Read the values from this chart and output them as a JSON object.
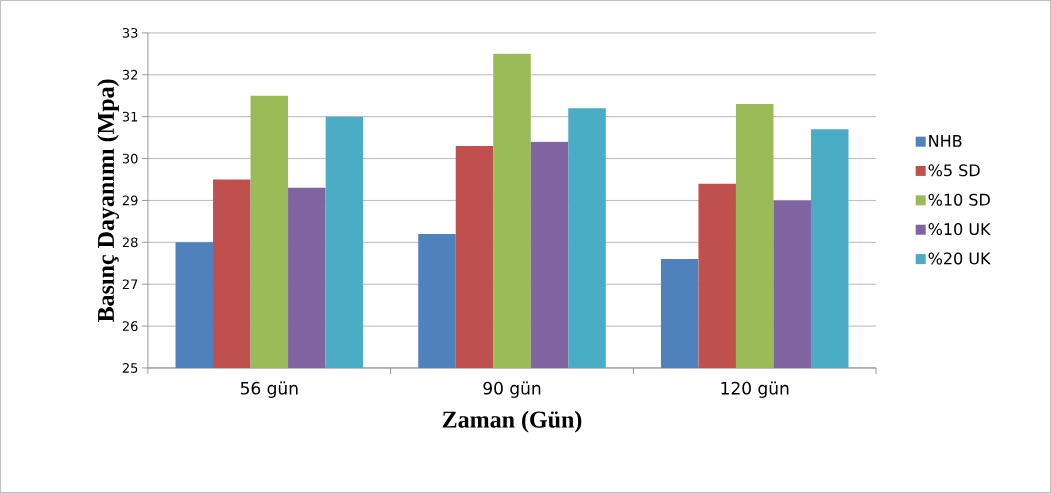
{
  "chart_data": {
    "type": "bar",
    "xlabel": "Zaman (Gün)",
    "ylabel": "Basınç Dayanımı (Mpa)",
    "categories": [
      "56 gün",
      "90 gün",
      "120 gün"
    ],
    "series": [
      {
        "name": "NHB",
        "color": "#4f81bd",
        "values": [
          28.0,
          28.2,
          27.6
        ]
      },
      {
        "name": "%5 SD",
        "color": "#c0504d",
        "values": [
          29.5,
          30.3,
          29.4
        ]
      },
      {
        "name": "%10 SD",
        "color": "#9bbb59",
        "values": [
          31.5,
          32.5,
          31.3
        ]
      },
      {
        "name": "%10 UK",
        "color": "#8064a2",
        "values": [
          29.3,
          30.4,
          29.0
        ]
      },
      {
        "name": "%20 UK",
        "color": "#4bacc6",
        "values": [
          31.0,
          31.2,
          30.7
        ]
      }
    ],
    "ylim": [
      25,
      33
    ],
    "yticks": [
      25,
      26,
      27,
      28,
      29,
      30,
      31,
      32,
      33
    ],
    "grid": "y",
    "legend": "right"
  }
}
